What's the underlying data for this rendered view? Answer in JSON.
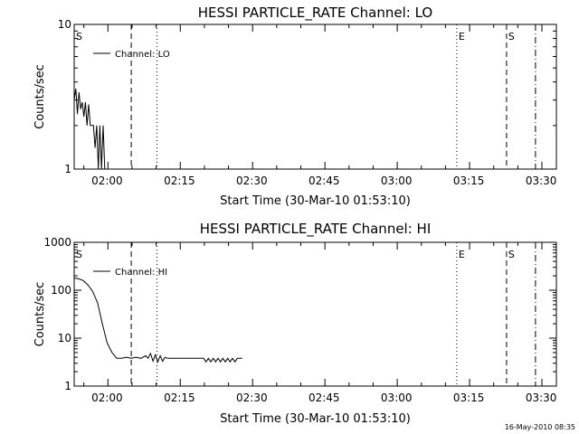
{
  "chart_data": [
    {
      "type": "line",
      "title": "HESSI PARTICLE_RATE Channel: LO",
      "xlabel": "Start Time (30-Mar-10 01:53:10)",
      "ylabel": "Counts/sec",
      "yscale": "log",
      "ylim": [
        1,
        10
      ],
      "y_tick_values": [
        1,
        10
      ],
      "y_tick_labels": [
        "1",
        "10"
      ],
      "xlim": [
        "01:53:10",
        "03:33:10"
      ],
      "x_tick_values": [
        "02:00",
        "02:15",
        "02:30",
        "02:45",
        "03:00",
        "03:15",
        "03:30"
      ],
      "x_tick_labels": [
        "02:00",
        "02:15",
        "02:30",
        "02:45",
        "03:00",
        "03:15",
        "03:30"
      ],
      "legend_position": "top-left",
      "series": [
        {
          "name": "Channel: LO",
          "x": [
            "01:53:10",
            "01:53:30",
            "01:53:50",
            "01:54:10",
            "01:54:30",
            "01:54:50",
            "01:55:10",
            "01:55:30",
            "01:55:50",
            "01:56:10",
            "01:56:30",
            "01:56:50",
            "01:57:10",
            "01:57:30",
            "01:57:50",
            "01:58:10",
            "01:58:30",
            "01:58:50",
            "01:59:10",
            "01:59:30"
          ],
          "y": [
            3.0,
            3.6,
            2.4,
            3.4,
            2.6,
            2.9,
            2.3,
            2.9,
            2.0,
            2.8,
            2.0,
            2.0,
            2.0,
            1.4,
            2.0,
            1.0,
            2.0,
            1.0,
            2.0,
            1.0
          ]
        }
      ],
      "vlines": [
        {
          "time": "01:53:10",
          "style": "dashed",
          "label": "S"
        },
        {
          "time": "02:05:00",
          "style": "dashed",
          "label": ""
        },
        {
          "time": "02:10:20",
          "style": "dotted",
          "label": ""
        },
        {
          "time": "03:12:30",
          "style": "dotted",
          "label": "E"
        },
        {
          "time": "03:22:50",
          "style": "dashed",
          "label": "S"
        },
        {
          "time": "03:28:50",
          "style": "dash-dot",
          "label": ""
        }
      ]
    },
    {
      "type": "line",
      "title": "HESSI PARTICLE_RATE Channel: HI",
      "xlabel": "Start Time (30-Mar-10 01:53:10)",
      "ylabel": "Counts/sec",
      "yscale": "log",
      "ylim": [
        1,
        1000
      ],
      "y_tick_values": [
        1,
        10,
        100,
        1000
      ],
      "y_tick_labels": [
        "1",
        "10",
        "100",
        "1000"
      ],
      "xlim": [
        "01:53:10",
        "03:33:10"
      ],
      "x_tick_values": [
        "02:00",
        "02:15",
        "02:30",
        "02:45",
        "03:00",
        "03:15",
        "03:30"
      ],
      "x_tick_labels": [
        "02:00",
        "02:15",
        "02:30",
        "02:45",
        "03:00",
        "03:15",
        "03:30"
      ],
      "legend_position": "top-left",
      "series": [
        {
          "name": "Channel: HI",
          "x": [
            "01:53:10",
            "01:54:00",
            "01:55:00",
            "01:56:00",
            "01:57:00",
            "01:58:00",
            "01:59:00",
            "02:00:00",
            "02:01:00",
            "02:02:00",
            "02:03:00",
            "02:04:00",
            "02:05:00",
            "02:06:00",
            "02:07:00",
            "02:08:00",
            "02:08:30",
            "02:09:00",
            "02:09:30",
            "02:10:00",
            "02:10:30",
            "02:11:00",
            "02:11:30",
            "02:12:00",
            "02:12:30",
            "02:13:00",
            "02:15:00",
            "02:17:00",
            "02:19:00",
            "02:20:00",
            "02:20:30",
            "02:21:00",
            "02:21:30",
            "02:22:00",
            "02:22:30",
            "02:23:00",
            "02:23:30",
            "02:24:00",
            "02:24:30",
            "02:25:00",
            "02:25:30",
            "02:26:00",
            "02:26:30",
            "02:27:00",
            "02:28:00"
          ],
          "y": [
            180,
            175,
            160,
            130,
            95,
            55,
            20,
            8,
            5,
            3.8,
            3.8,
            4.0,
            3.8,
            4.0,
            3.8,
            4.3,
            3.8,
            4.8,
            3.3,
            4.5,
            3.2,
            4.3,
            3.3,
            4.0,
            3.8,
            3.8,
            3.8,
            3.8,
            3.8,
            3.8,
            3.2,
            3.8,
            3.2,
            3.8,
            3.2,
            3.8,
            3.2,
            3.8,
            3.2,
            3.8,
            3.2,
            3.8,
            3.2,
            3.8,
            3.8
          ]
        }
      ],
      "vlines": [
        {
          "time": "01:53:10",
          "style": "dashed",
          "label": "S"
        },
        {
          "time": "02:05:00",
          "style": "dashed",
          "label": ""
        },
        {
          "time": "02:10:20",
          "style": "dotted",
          "label": ""
        },
        {
          "time": "03:12:30",
          "style": "dotted",
          "label": "E"
        },
        {
          "time": "03:22:50",
          "style": "dashed",
          "label": "S"
        },
        {
          "time": "03:28:50",
          "style": "dash-dot",
          "label": ""
        }
      ]
    }
  ],
  "footer": {
    "timestamp": "16-May-2010 08:35"
  }
}
